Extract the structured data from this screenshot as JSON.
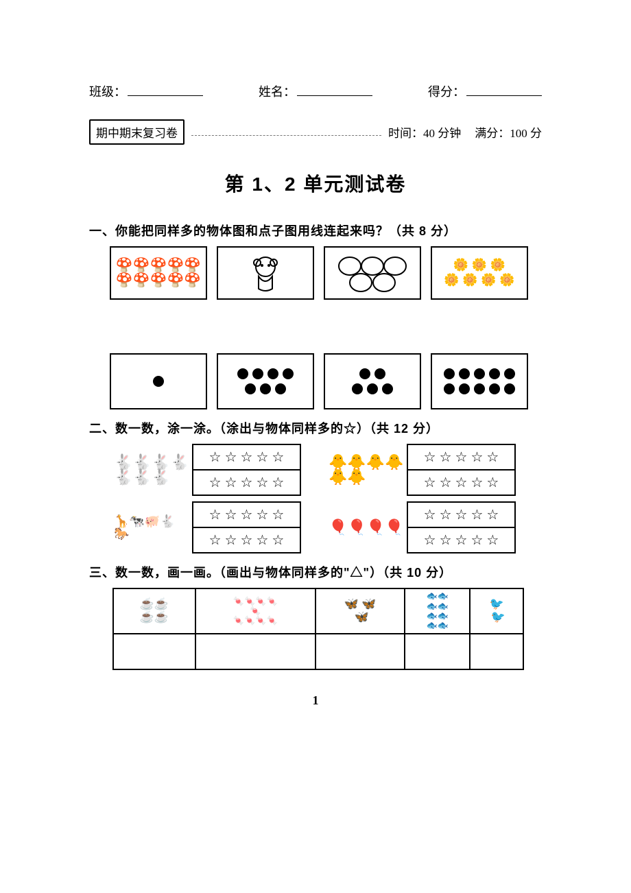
{
  "header": {
    "class_label": "班级：",
    "name_label": "姓名：",
    "score_label": "得分："
  },
  "badge": {
    "text": "期中期末复习卷",
    "time_text": "时间：40 分钟",
    "full_text": "满分：100 分"
  },
  "title": "第 1、2 单元测试卷",
  "q1": {
    "heading": "一、你能把同样多的物体图和点子图用线连起来吗？（共 8 分）",
    "top_boxes": [
      {
        "kind": "mushrooms",
        "count": 10
      },
      {
        "kind": "monkey",
        "count": 1
      },
      {
        "kind": "ovals",
        "count": 5
      },
      {
        "kind": "flowers",
        "count": 7
      }
    ],
    "dot_boxes": [
      1,
      7,
      5,
      10
    ]
  },
  "q2": {
    "heading": "二、数一数，涂一涂。（涂出与物体同样多的☆）（共 12 分）",
    "items": [
      {
        "img": "rabbits",
        "count": 7,
        "stars_rows": [
          5,
          5
        ]
      },
      {
        "img": "ducks",
        "count": 6,
        "stars_rows": [
          5,
          5
        ]
      },
      {
        "img": "animals",
        "count": 5,
        "stars_rows": [
          5,
          5
        ]
      },
      {
        "img": "balloons",
        "count": 4,
        "stars_rows": [
          5,
          5
        ]
      }
    ],
    "star_char": "☆"
  },
  "q3": {
    "heading": "三、数一数，画一画。（画出与物体同样多的\"△\"）（共 10 分）",
    "cells": [
      {
        "img": "cups",
        "count": 4
      },
      {
        "img": "candies",
        "count": 9
      },
      {
        "img": "butterflies",
        "count": 3
      },
      {
        "img": "fish",
        "count": 8
      },
      {
        "img": "birds",
        "count": 2
      }
    ]
  },
  "page_number": "1",
  "colors": {
    "text": "#000000",
    "background": "#ffffff",
    "dash": "#777777"
  }
}
